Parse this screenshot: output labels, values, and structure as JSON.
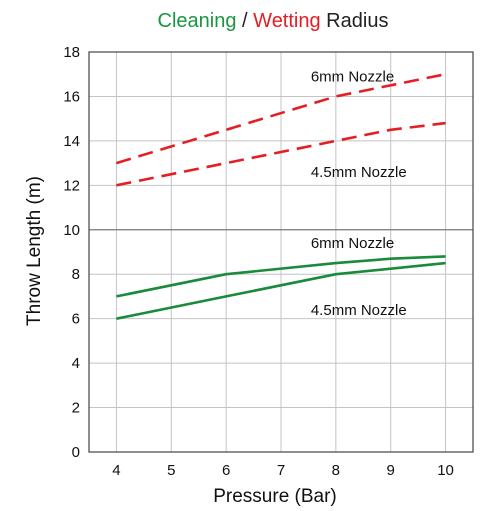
{
  "chart_data": {
    "type": "line",
    "title_parts": [
      {
        "text": "Cleaning",
        "color": "#1a9640"
      },
      {
        "text": " / ",
        "color": "#222222"
      },
      {
        "text": "Wetting",
        "color": "#e31e24"
      },
      {
        "text": " Radius",
        "color": "#222222"
      }
    ],
    "xlabel": "Pressure (Bar)",
    "ylabel": "Throw Length (m)",
    "x_ticks": [
      4,
      5,
      6,
      7,
      8,
      9,
      10
    ],
    "y_ticks": [
      0,
      2,
      4,
      6,
      8,
      10,
      12,
      14,
      16,
      18
    ],
    "xlim": [
      3.5,
      10.5
    ],
    "ylim": [
      0,
      18
    ],
    "grid": true,
    "colors": {
      "cleaning": "#1a8a3c",
      "wetting": "#e31e24"
    },
    "series": [
      {
        "group": "wetting",
        "style": "dashed",
        "x": [
          4,
          6,
          8,
          10
        ],
        "y": [
          13,
          14.5,
          16,
          17
        ]
      },
      {
        "group": "wetting",
        "style": "dashed",
        "x": [
          4,
          6,
          8,
          9,
          10
        ],
        "y": [
          12,
          13,
          14,
          14.5,
          14.8
        ]
      },
      {
        "group": "cleaning",
        "style": "solid",
        "x": [
          4,
          6,
          8,
          9,
          10
        ],
        "y": [
          7,
          8,
          8.5,
          8.7,
          8.8
        ]
      },
      {
        "group": "cleaning",
        "style": "solid",
        "x": [
          4,
          6,
          8,
          10
        ],
        "y": [
          6,
          7,
          8,
          8.5
        ]
      }
    ],
    "annotations": [
      {
        "text": "6mm Nozzle",
        "x": 8.0,
        "y": 16.9
      },
      {
        "text": "4.5mm Nozzle",
        "x": 8.0,
        "y": 12.6
      },
      {
        "text": "6mm Nozzle",
        "x": 8.0,
        "y": 9.4
      },
      {
        "text": "4.5mm Nozzle",
        "x": 8.0,
        "y": 6.4
      }
    ]
  }
}
